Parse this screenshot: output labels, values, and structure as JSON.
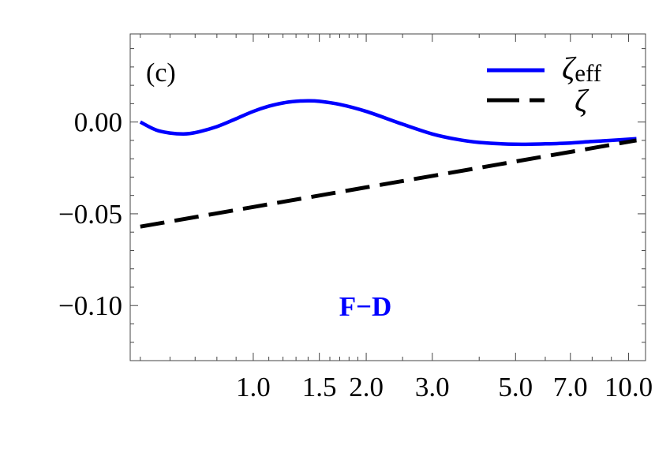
{
  "chart_data": {
    "type": "line",
    "panel_label": "(c)",
    "annotation": "F−D",
    "annotation_color": "#0000ff",
    "x_scale": "log",
    "xlim": [
      0.47,
      11.1
    ],
    "ylim": [
      -0.13,
      0.048
    ],
    "grid": false,
    "legend_position": "top-right",
    "x_ticks": [
      {
        "value": 1.0,
        "label": "1.0"
      },
      {
        "value": 1.5,
        "label": "1.5"
      },
      {
        "value": 2.0,
        "label": "2.0"
      },
      {
        "value": 3.0,
        "label": "3.0"
      },
      {
        "value": 5.0,
        "label": "5.0"
      },
      {
        "value": 7.0,
        "label": "7.0"
      },
      {
        "value": 10.0,
        "label": "10.0"
      }
    ],
    "y_ticks": [
      {
        "value": 0.0,
        "label": "0.00"
      },
      {
        "value": -0.05,
        "label": "−0.05"
      },
      {
        "value": -0.1,
        "label": "−0.10"
      }
    ],
    "series": [
      {
        "name": "ζ",
        "name_subscript": "eff",
        "color": "#0000ff",
        "line_style": "solid",
        "x": [
          0.5,
          0.55,
          0.6,
          0.65,
          0.7,
          0.8,
          0.9,
          1.0,
          1.1,
          1.2,
          1.3,
          1.4,
          1.5,
          1.7,
          2.0,
          2.5,
          3.0,
          3.5,
          4.0,
          5.0,
          6.0,
          7.0,
          8.0,
          9.0,
          10.5
        ],
        "y": [
          0.0,
          -0.0043,
          -0.006,
          -0.0065,
          -0.0058,
          -0.0025,
          0.0018,
          0.0058,
          0.0086,
          0.0104,
          0.0113,
          0.0116,
          0.0113,
          0.0096,
          0.0058,
          -0.0012,
          -0.0065,
          -0.0095,
          -0.0111,
          -0.0121,
          -0.0119,
          -0.0114,
          -0.0106,
          -0.01,
          -0.0091
        ]
      },
      {
        "name": "ζ",
        "color": "#000000",
        "line_style": "dashed",
        "x": [
          0.5,
          1.0,
          2.0,
          5.0,
          10.5
        ],
        "y": [
          -0.057,
          -0.0463,
          -0.0356,
          -0.0215,
          -0.01
        ]
      }
    ]
  }
}
